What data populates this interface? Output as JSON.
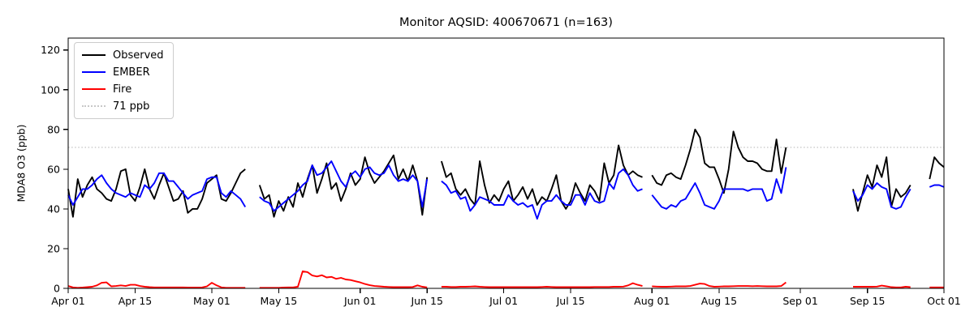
{
  "legend": {
    "items": [
      {
        "label": "Observed",
        "color": "#000000",
        "style": "solid"
      },
      {
        "label": "EMBER",
        "color": "#0000ff",
        "style": "solid"
      },
      {
        "label": "Fire",
        "color": "#ff0000",
        "style": "solid"
      },
      {
        "label": "71 ppb",
        "color": "#c8c8c8",
        "style": "dotted"
      }
    ]
  },
  "chart_data": {
    "type": "line",
    "title": "Monitor AQSID: 400670671 (n=163)",
    "xlabel": "",
    "ylabel": "MDA8 O3 (ppb)",
    "x_description": "daily values; x = day index where 0 = Apr 01 and 183 = Oct 01; null = missing day",
    "xlim_days": [
      0,
      183
    ],
    "ylim": [
      0,
      126
    ],
    "y_ticks": [
      0,
      20,
      40,
      60,
      80,
      100,
      120
    ],
    "x_tick_days": [
      0,
      14,
      30,
      44,
      61,
      75,
      91,
      105,
      122,
      136,
      153,
      167,
      183
    ],
    "x_tick_labels": [
      "Apr 01",
      "Apr 15",
      "May 01",
      "May 15",
      "Jun 01",
      "Jun 15",
      "Jul 01",
      "Jul 15",
      "Aug 01",
      "Aug 15",
      "Sep 01",
      "Sep 15",
      "Oct 01"
    ],
    "grid": false,
    "legend_position": "upper left",
    "n_observations": 163,
    "threshold": {
      "label": "71 ppb",
      "value": 71,
      "color": "#c8c8c8",
      "style": "dotted"
    },
    "series": [
      {
        "name": "Observed",
        "color": "#000000",
        "values": [
          50,
          36,
          55,
          46,
          52,
          56,
          50,
          48,
          45,
          44,
          50,
          59,
          60,
          47,
          44,
          51,
          60,
          50,
          45,
          52,
          58,
          51,
          44,
          45,
          49,
          38,
          40,
          40,
          45,
          53,
          55,
          57,
          45,
          44,
          48,
          53,
          58,
          60,
          null,
          null,
          52,
          45,
          47,
          36,
          44,
          39,
          46,
          41,
          53,
          46,
          55,
          62,
          48,
          55,
          63,
          50,
          53,
          44,
          50,
          58,
          52,
          55,
          66,
          58,
          53,
          56,
          59,
          63,
          67,
          55,
          60,
          54,
          62,
          54,
          37,
          56,
          null,
          null,
          64,
          56,
          58,
          50,
          47,
          50,
          45,
          42,
          64,
          52,
          43,
          47,
          44,
          50,
          54,
          44,
          47,
          51,
          45,
          50,
          42,
          46,
          44,
          50,
          57,
          44,
          40,
          44,
          53,
          48,
          44,
          52,
          49,
          44,
          63,
          53,
          57,
          72,
          62,
          57,
          59,
          57,
          56,
          null,
          57,
          53,
          52,
          57,
          58,
          56,
          55,
          62,
          70,
          80,
          76,
          63,
          61,
          61,
          55,
          48,
          60,
          79,
          71,
          66,
          64,
          64,
          63,
          60,
          59,
          59,
          75,
          58,
          71,
          null,
          null,
          null,
          null,
          null,
          null,
          null,
          null,
          null,
          null,
          null,
          null,
          null,
          50,
          39,
          48,
          57,
          51,
          62,
          56,
          66,
          41,
          50,
          46,
          48,
          52,
          null,
          null,
          null,
          55,
          66,
          63,
          61
        ]
      },
      {
        "name": "EMBER",
        "color": "#0000ff",
        "values": [
          47,
          42,
          46,
          50,
          50,
          52,
          55,
          57,
          53,
          50,
          48,
          47,
          46,
          48,
          47,
          46,
          52,
          50,
          53,
          58,
          58,
          54,
          54,
          51,
          48,
          45,
          47,
          48,
          49,
          55,
          56,
          56,
          48,
          46,
          49,
          47,
          45,
          41,
          null,
          null,
          46,
          44,
          43,
          39,
          41,
          43,
          45,
          47,
          49,
          52,
          54,
          62,
          57,
          58,
          61,
          64,
          59,
          54,
          51,
          57,
          59,
          56,
          60,
          61,
          58,
          57,
          58,
          62,
          57,
          54,
          55,
          54,
          57,
          54,
          41,
          55,
          null,
          null,
          54,
          52,
          48,
          49,
          45,
          46,
          39,
          42,
          46,
          45,
          44,
          42,
          42,
          42,
          47,
          44,
          42,
          43,
          41,
          42,
          35,
          42,
          44,
          44,
          47,
          44,
          42,
          42,
          47,
          47,
          42,
          48,
          44,
          43,
          44,
          53,
          50,
          58,
          60,
          57,
          52,
          49,
          50,
          null,
          47,
          44,
          41,
          40,
          42,
          41,
          44,
          45,
          49,
          53,
          48,
          42,
          41,
          40,
          44,
          50,
          50,
          50,
          50,
          50,
          49,
          50,
          50,
          50,
          44,
          45,
          55,
          48,
          61,
          null,
          null,
          null,
          null,
          null,
          null,
          null,
          null,
          null,
          null,
          null,
          null,
          null,
          49,
          44,
          47,
          52,
          50,
          53,
          51,
          50,
          41,
          40,
          41,
          46,
          50,
          null,
          null,
          null,
          51,
          52,
          52,
          51
        ]
      },
      {
        "name": "Fire",
        "color": "#ff0000",
        "values": [
          1.2,
          0.5,
          0.3,
          0.4,
          0.6,
          0.8,
          1.5,
          2.8,
          3,
          1,
          1.2,
          1.5,
          1.2,
          1.8,
          1.8,
          1.2,
          0.8,
          0.6,
          0.5,
          0.5,
          0.5,
          0.5,
          0.5,
          0.5,
          0.5,
          0.4,
          0.4,
          0.4,
          0.5,
          1,
          2.8,
          1.5,
          0.5,
          0.3,
          0.3,
          0.3,
          0.3,
          0.3,
          null,
          null,
          0.3,
          0.3,
          0.3,
          0.3,
          0.3,
          0.4,
          0.5,
          0.5,
          0.8,
          8.6,
          8.2,
          6.5,
          6,
          6.6,
          5.5,
          5.8,
          4.8,
          5.3,
          4.5,
          4.2,
          3.6,
          3,
          2.2,
          1.6,
          1.2,
          1,
          0.8,
          0.7,
          0.6,
          0.6,
          0.6,
          0.6,
          0.7,
          1.5,
          0.8,
          0.5,
          null,
          null,
          0.8,
          0.8,
          0.7,
          0.7,
          0.8,
          0.8,
          0.9,
          1,
          0.8,
          0.7,
          0.6,
          0.6,
          0.6,
          0.6,
          0.6,
          0.6,
          0.6,
          0.6,
          0.6,
          0.6,
          0.6,
          0.7,
          0.8,
          0.7,
          0.6,
          0.6,
          0.6,
          0.6,
          0.6,
          0.6,
          0.6,
          0.6,
          0.7,
          0.7,
          0.7,
          0.7,
          0.8,
          0.8,
          0.9,
          1.5,
          2.6,
          1.8,
          1.2,
          null,
          1,
          0.9,
          0.8,
          0.8,
          0.9,
          1,
          1,
          1,
          1.2,
          1.8,
          2.4,
          2.2,
          1.2,
          0.8,
          0.9,
          1,
          1,
          1.1,
          1.2,
          1.2,
          1.2,
          1.1,
          1.2,
          1.1,
          1,
          1,
          1,
          1.2,
          3,
          null,
          null,
          null,
          null,
          null,
          null,
          null,
          null,
          null,
          null,
          null,
          null,
          null,
          0.8,
          0.8,
          0.8,
          0.8,
          0.8,
          0.9,
          1.4,
          1,
          0.6,
          0.5,
          0.5,
          0.8,
          0.6,
          null,
          null,
          null,
          0.5,
          0.5,
          0.5,
          0.5
        ]
      }
    ]
  }
}
